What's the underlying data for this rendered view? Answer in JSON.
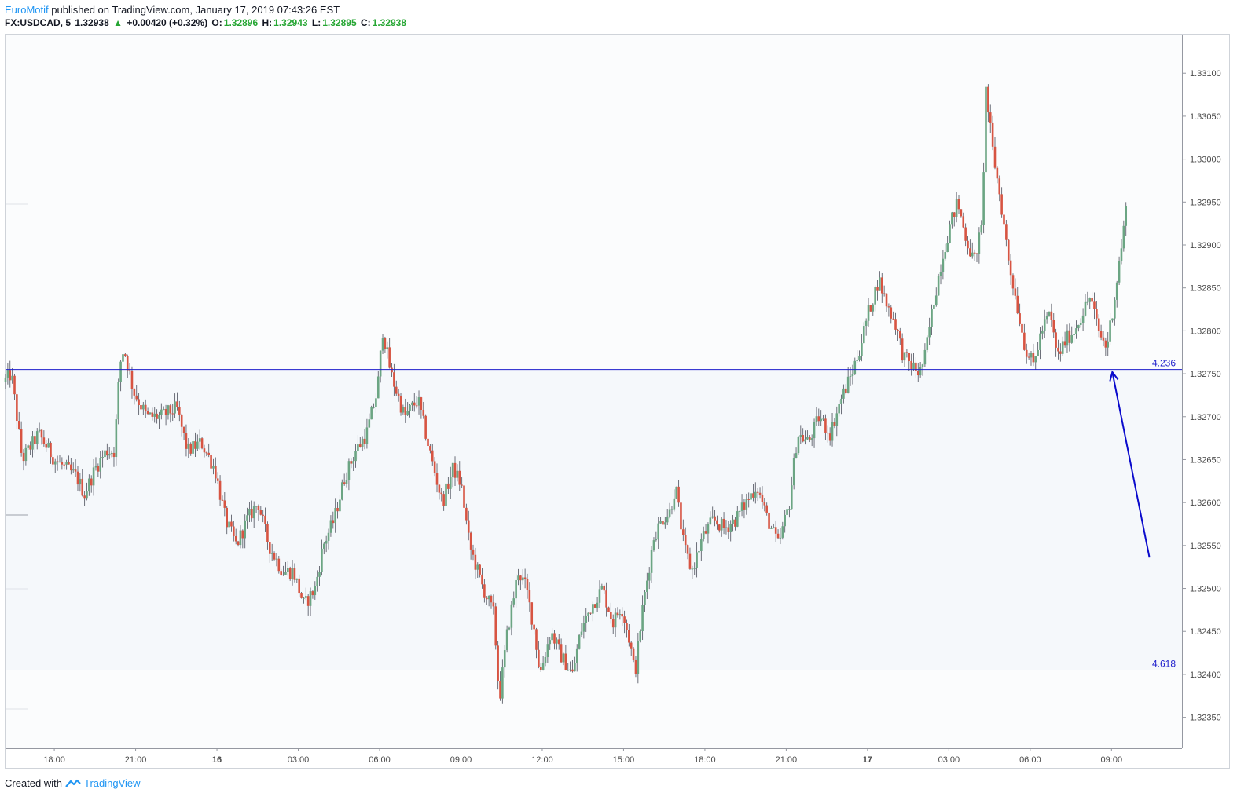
{
  "header": {
    "author": "EuroMotif",
    "published_text": "published on TradingView.com, January 17, 2019 07:43:26 EST",
    "symbol": "FX:USDCAD, 5",
    "last": "1.32938",
    "change_arrow": "▲",
    "change": "+0.00420 (+0.32%)",
    "o_label": "O:",
    "o_value": "1.32896",
    "h_label": "H:",
    "h_value": "1.32943",
    "l_label": "L:",
    "l_value": "1.32895",
    "c_label": "C:",
    "c_value": "1.32938"
  },
  "footer": {
    "created_with": "Created with",
    "brand": "TradingView",
    "logo_icon": "tradingview-logo-icon"
  },
  "colors": {
    "up": "#6ba583",
    "down": "#d75442",
    "level_line": "#1e1ecc",
    "arrow": "#0a0acc",
    "zone_fill": "#f5f8fb",
    "axis_text": "#4a4a4a"
  },
  "chart_data": {
    "type": "candlestick",
    "symbol": "FX:USDCAD",
    "interval": "5",
    "y_axis": {
      "ticks": [
        1.3235,
        1.324,
        1.3245,
        1.325,
        1.3255,
        1.326,
        1.3265,
        1.327,
        1.3275,
        1.328,
        1.3285,
        1.329,
        1.3295,
        1.33,
        1.3305,
        1.331
      ],
      "tick_labels": [
        "1.32350",
        "1.32400",
        "1.32450",
        "1.32500",
        "1.32550",
        "1.32600",
        "1.32650",
        "1.32700",
        "1.32750",
        "1.32800",
        "1.32850",
        "1.32900",
        "1.32950",
        "1.33000",
        "1.33050",
        "1.33100"
      ],
      "range": [
        1.32314,
        1.33145
      ]
    },
    "x_axis": {
      "start_hour": 16.2,
      "end_hour": 59.6,
      "ticks": [
        18,
        21,
        24,
        27,
        30,
        33,
        36,
        39,
        42,
        45,
        48,
        51,
        54,
        57
      ],
      "tick_labels": [
        "18:00",
        "21:00",
        "16",
        "03:00",
        "06:00",
        "09:00",
        "12:00",
        "15:00",
        "18:00",
        "21:00",
        "17",
        "03:00",
        "06:00",
        "09:00"
      ]
    },
    "levels": [
      {
        "label": "4.236",
        "price": 1.32755
      },
      {
        "label": "4.618",
        "price": 1.32405
      }
    ],
    "price_path": [
      [
        16.2,
        1.3274
      ],
      [
        16.5,
        1.3275
      ],
      [
        16.9,
        1.3265
      ],
      [
        17.5,
        1.3268
      ],
      [
        18.1,
        1.3265
      ],
      [
        18.9,
        1.3263
      ],
      [
        19.2,
        1.3261
      ],
      [
        19.6,
        1.3264
      ],
      [
        20.0,
        1.3266
      ],
      [
        20.3,
        1.3266
      ],
      [
        20.5,
        1.3276
      ],
      [
        20.65,
        1.3278
      ],
      [
        21.0,
        1.3273
      ],
      [
        21.5,
        1.327
      ],
      [
        22.0,
        1.327
      ],
      [
        22.6,
        1.3271
      ],
      [
        23.0,
        1.3266
      ],
      [
        23.5,
        1.3267
      ],
      [
        24.0,
        1.3264
      ],
      [
        24.4,
        1.3258
      ],
      [
        24.8,
        1.3255
      ],
      [
        25.2,
        1.3258
      ],
      [
        25.6,
        1.326
      ],
      [
        26.0,
        1.3255
      ],
      [
        26.5,
        1.3252
      ],
      [
        26.9,
        1.3252
      ],
      [
        27.3,
        1.3248
      ],
      [
        27.7,
        1.325
      ],
      [
        28.0,
        1.3255
      ],
      [
        28.4,
        1.3258
      ],
      [
        28.8,
        1.3263
      ],
      [
        29.2,
        1.3266
      ],
      [
        29.6,
        1.3268
      ],
      [
        30.0,
        1.3273
      ],
      [
        30.2,
        1.328
      ],
      [
        30.5,
        1.3275
      ],
      [
        31.0,
        1.327
      ],
      [
        31.5,
        1.3272
      ],
      [
        32.0,
        1.3265
      ],
      [
        32.4,
        1.326
      ],
      [
        32.8,
        1.3264
      ],
      [
        33.1,
        1.3262
      ],
      [
        33.4,
        1.3255
      ],
      [
        33.9,
        1.325
      ],
      [
        34.3,
        1.3247
      ],
      [
        34.5,
        1.3237
      ],
      [
        34.8,
        1.3245
      ],
      [
        35.2,
        1.3252
      ],
      [
        35.5,
        1.325
      ],
      [
        35.8,
        1.3245
      ],
      [
        36.0,
        1.324
      ],
      [
        36.4,
        1.3245
      ],
      [
        36.8,
        1.3242
      ],
      [
        37.2,
        1.324
      ],
      [
        37.5,
        1.3245
      ],
      [
        37.9,
        1.3248
      ],
      [
        38.3,
        1.325
      ],
      [
        38.7,
        1.3246
      ],
      [
        39.0,
        1.3248
      ],
      [
        39.3,
        1.3244
      ],
      [
        39.5,
        1.324
      ],
      [
        39.8,
        1.3248
      ],
      [
        40.2,
        1.3256
      ],
      [
        40.5,
        1.3258
      ],
      [
        40.8,
        1.3259
      ],
      [
        41.0,
        1.3262
      ],
      [
        41.3,
        1.3255
      ],
      [
        41.6,
        1.3252
      ],
      [
        42.0,
        1.3256
      ],
      [
        42.4,
        1.3258
      ],
      [
        42.8,
        1.3257
      ],
      [
        43.2,
        1.3258
      ],
      [
        43.6,
        1.326
      ],
      [
        44.0,
        1.3262
      ],
      [
        44.4,
        1.3258
      ],
      [
        44.8,
        1.3255
      ],
      [
        45.2,
        1.326
      ],
      [
        45.5,
        1.3268
      ],
      [
        45.9,
        1.3267
      ],
      [
        46.3,
        1.327
      ],
      [
        46.7,
        1.3268
      ],
      [
        47.1,
        1.3272
      ],
      [
        47.5,
        1.3275
      ],
      [
        47.8,
        1.3278
      ],
      [
        48.1,
        1.3282
      ],
      [
        48.5,
        1.3286
      ],
      [
        48.8,
        1.3283
      ],
      [
        49.1,
        1.3281
      ],
      [
        49.4,
        1.3277
      ],
      [
        49.7,
        1.3276
      ],
      [
        50.0,
        1.3275
      ],
      [
        50.2,
        1.3277
      ],
      [
        50.5,
        1.3283
      ],
      [
        50.8,
        1.3288
      ],
      [
        51.1,
        1.3292
      ],
      [
        51.4,
        1.3295
      ],
      [
        51.7,
        1.3291
      ],
      [
        52.0,
        1.3288
      ],
      [
        52.3,
        1.3292
      ],
      [
        52.45,
        1.3308
      ],
      [
        52.7,
        1.3301
      ],
      [
        53.0,
        1.3295
      ],
      [
        53.3,
        1.3288
      ],
      [
        53.6,
        1.3283
      ],
      [
        53.9,
        1.3278
      ],
      [
        54.2,
        1.3276
      ],
      [
        54.5,
        1.328
      ],
      [
        54.8,
        1.3282
      ],
      [
        55.1,
        1.3277
      ],
      [
        55.4,
        1.3279
      ],
      [
        55.7,
        1.328
      ],
      [
        56.0,
        1.3282
      ],
      [
        56.3,
        1.3284
      ],
      [
        56.6,
        1.328
      ],
      [
        56.9,
        1.3278
      ],
      [
        57.2,
        1.3284
      ],
      [
        57.5,
        1.3291
      ],
      [
        57.6,
        1.3294
      ]
    ],
    "annotations": [
      {
        "type": "arrow",
        "from": [
          58.4,
          1.32536
        ],
        "to": [
          57.03,
          1.32752
        ]
      }
    ]
  }
}
